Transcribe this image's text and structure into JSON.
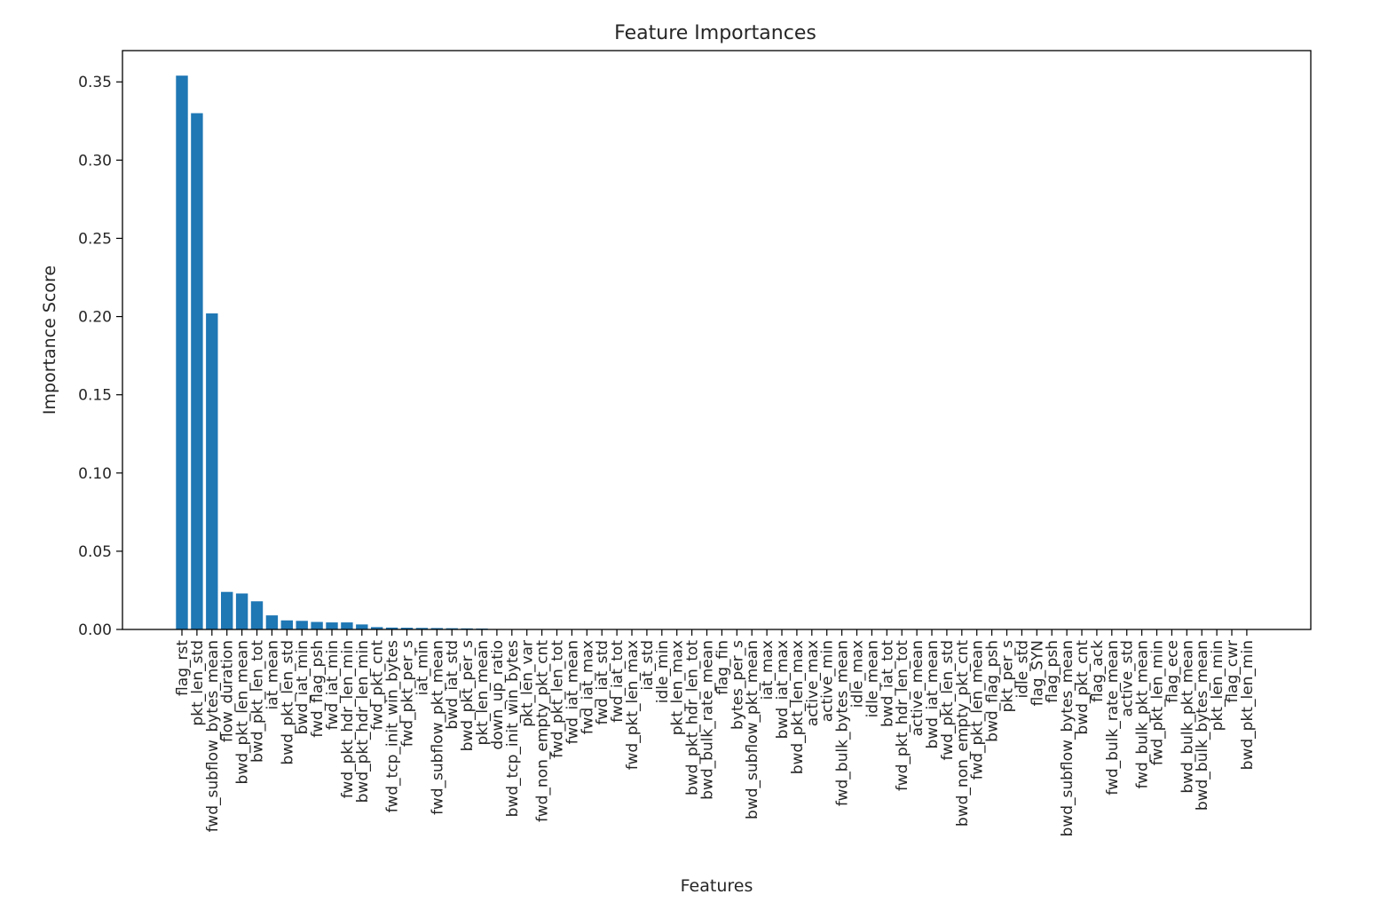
{
  "chart_data": {
    "type": "bar",
    "title": "Feature Importances",
    "xlabel": "Features",
    "ylabel": "Importance Score",
    "ylim": [
      0,
      0.37
    ],
    "yticks": [
      "0.00",
      "0.05",
      "0.10",
      "0.15",
      "0.20",
      "0.25",
      "0.30",
      "0.35"
    ],
    "grid": false,
    "bar_color": "#1f77b4",
    "categories": [
      "flag_rst",
      "pkt_len_std",
      "fwd_subflow_bytes_mean",
      "flow_duration",
      "bwd_pkt_len_mean",
      "bwd_pkt_len_tot",
      "iat_mean",
      "bwd_pkt_len_std",
      "bwd_iat_min",
      "fwd_flag_psh",
      "fwd_iat_min",
      "fwd_pkt_hdr_len_min",
      "bwd_pkt_hdr_len_min",
      "fwd_pkt_cnt",
      "fwd_tcp_init_win_bytes",
      "fwd_pkt_per_s",
      "iat_min",
      "fwd_subflow_pkt_mean",
      "bwd_iat_std",
      "bwd_pkt_per_s",
      "pkt_len_mean",
      "down_up_ratio",
      "bwd_tcp_init_win_bytes",
      "pkt_len_var",
      "fwd_non_empty_pkt_cnt",
      "fwd_pkt_len_tot",
      "fwd_iat_mean",
      "fwd_iat_max",
      "fwd_iat_std",
      "fwd_iat_tot",
      "fwd_pkt_len_max",
      "iat_std",
      "idle_min",
      "pkt_len_max",
      "bwd_pkt_hdr_len_tot",
      "bwd_bulk_rate_mean",
      "flag_fin",
      "bytes_per_s",
      "bwd_subflow_pkt_mean",
      "iat_max",
      "bwd_iat_max",
      "bwd_pkt_len_max",
      "active_max",
      "active_min",
      "fwd_bulk_bytes_mean",
      "idle_max",
      "idle_mean",
      "bwd_iat_tot",
      "fwd_pkt_hdr_len_tot",
      "active_mean",
      "bwd_iat_mean",
      "fwd_pkt_len_std",
      "bwd_non_empty_pkt_cnt",
      "fwd_pkt_len_mean",
      "bwd_flag_psh",
      "pkt_per_s",
      "idle_std",
      "flag_SYN",
      "flag_psh",
      "bwd_subflow_bytes_mean",
      "bwd_pkt_cnt",
      "flag_ack",
      "fwd_bulk_rate_mean",
      "active_std",
      "fwd_bulk_pkt_mean",
      "fwd_pkt_len_min",
      "flag_ece",
      "bwd_bulk_pkt_mean",
      "bwd_bulk_bytes_mean",
      "pkt_len_min",
      "flag_cwr",
      "bwd_pkt_len_min"
    ],
    "values": [
      0.354,
      0.33,
      0.202,
      0.024,
      0.023,
      0.018,
      0.009,
      0.0058,
      0.0055,
      0.0048,
      0.0045,
      0.0045,
      0.0032,
      0.0015,
      0.0012,
      0.0011,
      0.001,
      0.0009,
      0.0008,
      0.0007,
      0.0006,
      0.0002,
      0.0001,
      8e-05,
      6e-05,
      5e-05,
      4e-05,
      3e-05,
      3e-05,
      2e-05,
      2e-05,
      1e-05,
      1e-05,
      1e-05,
      1e-05,
      0,
      0,
      0,
      0,
      0,
      0,
      0,
      0,
      0,
      0,
      0,
      0,
      0,
      0,
      0,
      0,
      0,
      0,
      0,
      0,
      0,
      0,
      0,
      0,
      0,
      0,
      0,
      0,
      0,
      0,
      0,
      0,
      0,
      0,
      0,
      0,
      0
    ]
  }
}
